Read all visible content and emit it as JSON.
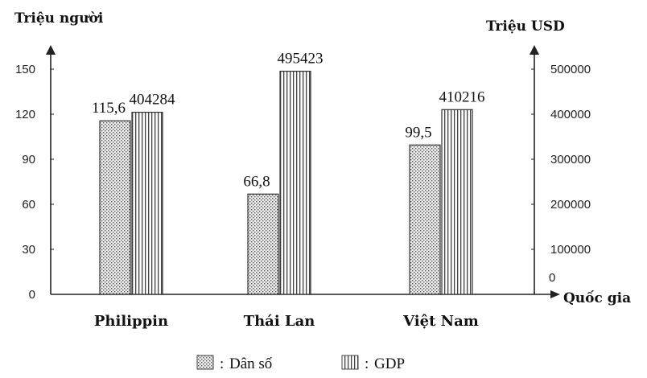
{
  "chart_data": {
    "type": "bar",
    "categories": [
      "Philippin",
      "Thái Lan",
      "Việt Nam"
    ],
    "xlabel": "Quốc gia",
    "series": [
      {
        "name": "Dân số",
        "axis": "left",
        "values": [
          115.6,
          66.8,
          99.5
        ],
        "labels": [
          "115,6",
          "66,8",
          "99,5"
        ],
        "pattern": "dots"
      },
      {
        "name": "GDP",
        "axis": "right",
        "values": [
          404284,
          495423,
          410216
        ],
        "labels": [
          "404284",
          "495423",
          "410216"
        ],
        "pattern": "vertical-stripes"
      }
    ],
    "y_left": {
      "label": "Triệu người",
      "range": [
        0,
        150
      ],
      "ticks": [
        "0",
        "30",
        "60",
        "90",
        "120",
        "150"
      ]
    },
    "y_right": {
      "label": "Triệu USD",
      "range": [
        0,
        500000
      ],
      "ticks": [
        "0",
        "100000",
        "200000",
        "300000",
        "400000",
        "500000"
      ]
    },
    "legend": {
      "placement": "bottom",
      "prefix": ":",
      "entries": [
        "Dân số",
        "GDP"
      ]
    },
    "grid": false
  }
}
